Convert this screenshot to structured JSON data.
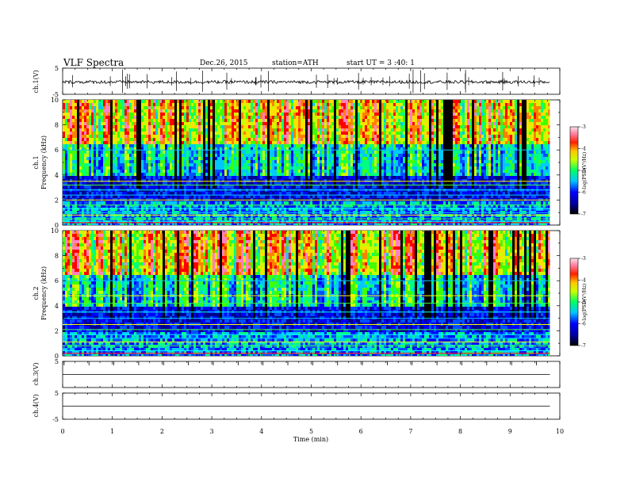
{
  "header": {
    "title": "VLF Spectra",
    "date": "Dec.26, 2015",
    "station": "station=ATH",
    "start": "start UT = 3 :40: 1"
  },
  "chart_data": [
    {
      "type": "line",
      "panel": "ch1-waveform",
      "ylabel": "ch.1(V)",
      "ylim": [
        -5,
        5
      ],
      "yticks": [
        5,
        -5
      ],
      "description_values": {
        "baseline_v": -0.3,
        "noise_amplitude_v": 0.6
      }
    },
    {
      "type": "heatmap",
      "panel": "ch1-spectrogram",
      "ylabel": "ch.1\nFrequency (kHz)",
      "ylabel_line1": "ch.1",
      "ylabel_line2": "Frequency (kHz)",
      "ylim": [
        0,
        10
      ],
      "yticks": [
        0,
        2,
        4,
        6,
        8,
        10
      ],
      "xlim": [
        0,
        10
      ],
      "data_end_min": 9.8,
      "colorbar": {
        "label": "log(PSD(V²/Hz)",
        "ticks": [
          -3,
          -4,
          -5,
          -6,
          -7
        ],
        "range": [
          -7,
          -3
        ],
        "colors": [
          "#000080",
          "#0000ff",
          "#00ffff",
          "#00ff00",
          "#ffff00",
          "#ff0000",
          "#ff00ff",
          "#ffffff"
        ]
      },
      "bands_khz": [
        0.3,
        0.5,
        0.8,
        1.0,
        1.3,
        1.6,
        2.0,
        2.4,
        2.8,
        3.2,
        3.5,
        6.0
      ]
    },
    {
      "type": "heatmap",
      "panel": "ch2-spectrogram",
      "ylabel_line1": "ch.2",
      "ylabel_line2": "Frequency (kHz)",
      "ylim": [
        0,
        10
      ],
      "yticks": [
        0,
        2,
        4,
        6,
        8,
        10
      ],
      "xlim": [
        0,
        10
      ],
      "data_end_min": 9.8,
      "colorbar": {
        "label": "log(PSD(V²/Hz)",
        "ticks": [
          -3,
          -4,
          -5,
          -6,
          -7
        ],
        "range": [
          -7,
          -3
        ]
      },
      "bands_khz": [
        0.4,
        0.8,
        1.1,
        1.4,
        1.7,
        2.1,
        2.5,
        3.0,
        3.5,
        4.2,
        4.8,
        6.0
      ]
    },
    {
      "type": "line",
      "panel": "ch3-waveform",
      "ylabel": "ch.3(V)",
      "ylim": [
        -5,
        5
      ],
      "yticks": [
        5
      ],
      "flat_value_v": 0
    },
    {
      "type": "line",
      "panel": "ch4-waveform",
      "ylabel": "ch.4(V)",
      "ylim": [
        -5,
        5
      ],
      "yticks": [
        5,
        -5
      ],
      "flat_value_v": 0,
      "xlabel": "Time (min)",
      "xlim": [
        0,
        10
      ],
      "xticks": [
        0,
        1,
        2,
        3,
        4,
        5,
        6,
        7,
        8,
        9,
        10
      ]
    }
  ]
}
